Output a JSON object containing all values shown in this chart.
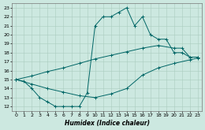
{
  "xlabel": "Humidex (Indice chaleur)",
  "ylabel": "",
  "xlim": [
    -0.5,
    23.5
  ],
  "ylim": [
    11.5,
    23.5
  ],
  "yticks": [
    12,
    13,
    14,
    15,
    16,
    17,
    18,
    19,
    20,
    21,
    22,
    23
  ],
  "xticks": [
    0,
    1,
    2,
    3,
    4,
    5,
    6,
    7,
    8,
    9,
    10,
    11,
    12,
    13,
    14,
    15,
    16,
    17,
    18,
    19,
    20,
    21,
    22,
    23
  ],
  "bg_color": "#cce8e0",
  "grid_color": "#aaccbf",
  "line_color": "#006666",
  "line1_x": [
    0,
    1,
    2,
    3,
    4,
    5,
    6,
    7,
    8,
    9,
    10,
    11,
    12,
    13,
    14,
    15,
    16,
    17,
    18,
    19,
    20,
    21,
    22,
    23
  ],
  "line1_y": [
    15,
    14.8,
    14,
    13,
    12.5,
    12,
    12,
    12,
    12,
    13.5,
    21,
    22,
    22,
    22.5,
    23,
    21,
    22,
    20,
    19.5,
    19.5,
    18,
    18,
    17.5,
    17.5
  ],
  "line2_x": [
    0,
    2,
    4,
    6,
    8,
    10,
    12,
    14,
    16,
    18,
    20,
    21,
    22,
    23
  ],
  "line2_y": [
    15,
    15.4,
    15.9,
    16.3,
    16.8,
    17.3,
    17.7,
    18.1,
    18.5,
    18.8,
    18.5,
    18.5,
    17.5,
    17.5
  ],
  "line3_x": [
    0,
    2,
    4,
    6,
    8,
    10,
    12,
    14,
    16,
    18,
    20,
    22,
    23
  ],
  "line3_y": [
    15,
    14.5,
    14.0,
    13.6,
    13.2,
    13.0,
    13.4,
    14.0,
    15.5,
    16.3,
    16.8,
    17.2,
    17.4
  ]
}
